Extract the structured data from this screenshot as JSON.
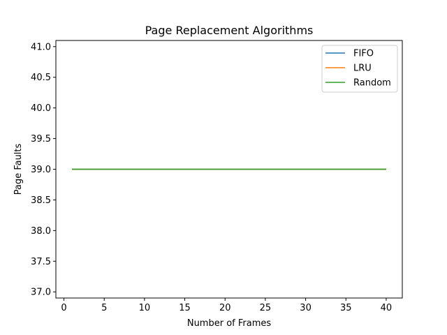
{
  "chart_data": {
    "type": "line",
    "title": "Page Replacement Algorithms",
    "xlabel": "Number of Frames",
    "ylabel": "Page Faults",
    "xlim": [
      -1,
      42
    ],
    "ylim": [
      36.9,
      41.1
    ],
    "xticks": [
      0,
      5,
      10,
      15,
      20,
      25,
      30,
      35,
      40
    ],
    "xtick_labels": [
      "0",
      "5",
      "10",
      "15",
      "20",
      "25",
      "30",
      "35",
      "40"
    ],
    "yticks": [
      37.0,
      37.5,
      38.0,
      38.5,
      39.0,
      39.5,
      40.0,
      40.5,
      41.0
    ],
    "ytick_labels": [
      "37.0",
      "37.5",
      "38.0",
      "38.5",
      "39.0",
      "39.5",
      "40.0",
      "40.5",
      "41.0"
    ],
    "grid": false,
    "legend_position": "top-right",
    "x": [
      1,
      40
    ],
    "series": [
      {
        "name": "FIFO",
        "color": "#1f77b4",
        "values": [
          39,
          39
        ]
      },
      {
        "name": "LRU",
        "color": "#ff7f0e",
        "values": [
          39,
          39
        ]
      },
      {
        "name": "Random",
        "color": "#2ca02c",
        "values": [
          39,
          39
        ]
      }
    ]
  }
}
